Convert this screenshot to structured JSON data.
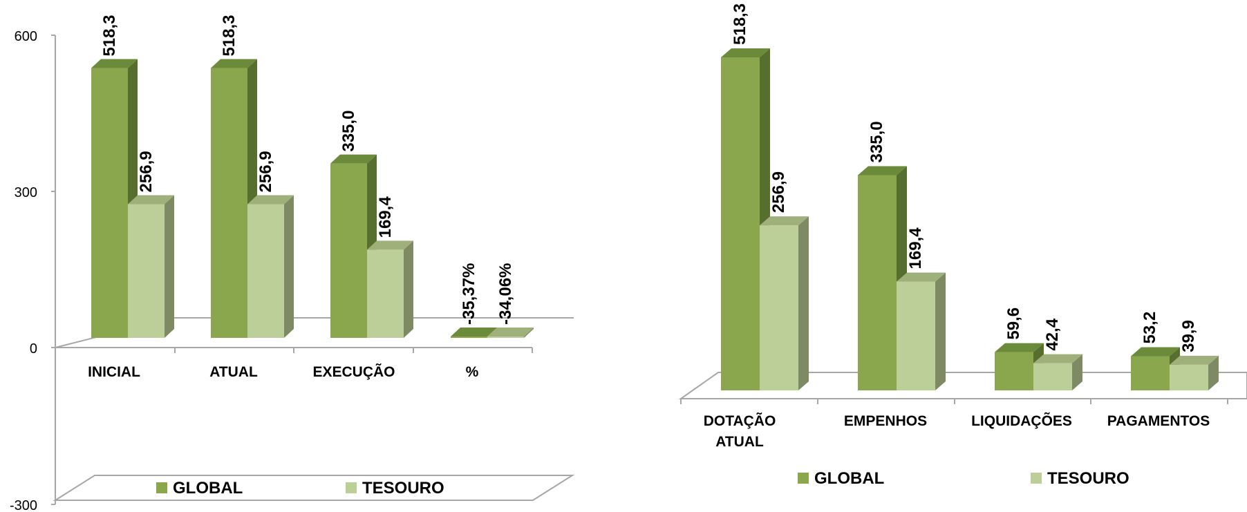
{
  "colors": {
    "global_front": "#8aa74e",
    "global_top": "#6b8a3a",
    "global_side": "#566f2f",
    "tesouro_front": "#bccf98",
    "tesouro_top": "#9fb07a",
    "tesouro_side": "#7d8a63",
    "axis": "#a6a6a6",
    "text": "#000000"
  },
  "chart_data": [
    {
      "type": "bar",
      "title": "",
      "xlabel": "",
      "ylabel": "",
      "ylim": [
        -300,
        600
      ],
      "yticks": [
        "600",
        "300",
        "0",
        "-300"
      ],
      "categories": [
        "INICIAL",
        "ATUAL",
        "EXECUÇÃO",
        "%"
      ],
      "series": [
        {
          "name": "GLOBAL",
          "values": [
            518.3,
            518.3,
            335.0,
            -35.37
          ],
          "labels": [
            "518,3",
            "518,3",
            "335,0",
            "-35,37%"
          ]
        },
        {
          "name": "TESOURO",
          "values": [
            256.9,
            256.9,
            169.4,
            -34.06
          ],
          "labels": [
            "256,9",
            "256,9",
            "169,4",
            "-34,06%"
          ]
        }
      ],
      "grid": false,
      "legend": "bottom"
    },
    {
      "type": "bar",
      "title": "",
      "xlabel": "",
      "ylabel": "",
      "categories": [
        "DOTAÇÃO ATUAL",
        "EMPENHOS",
        "LIQUIDAÇÕES",
        "PAGAMENTOS"
      ],
      "series": [
        {
          "name": "GLOBAL",
          "values": [
            518.3,
            335.0,
            59.6,
            53.2
          ],
          "labels": [
            "518,3",
            "335,0",
            "59,6",
            "53,2"
          ]
        },
        {
          "name": "TESOURO",
          "values": [
            256.9,
            169.4,
            42.4,
            39.9
          ],
          "labels": [
            "256,9",
            "169,4",
            "42,4",
            "39,9"
          ]
        }
      ],
      "grid": false,
      "legend": "bottom"
    }
  ]
}
